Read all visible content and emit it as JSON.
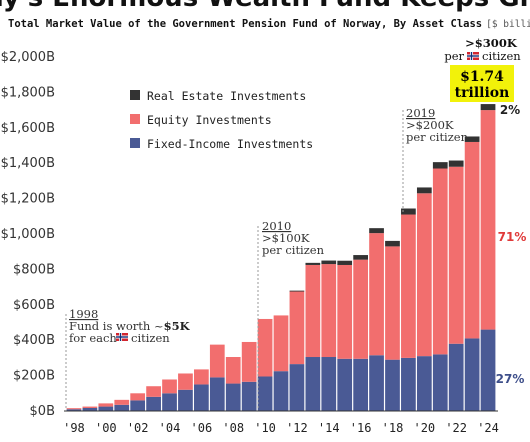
{
  "title": "Norway's Enormous Wealth Fund Keeps Growing",
  "subtitle": "Total Market Value of the Government Pension Fund of Norway, By Asset Class",
  "subtitle_unit": "[$ billions, annual]",
  "colors": {
    "real_estate": "#333333",
    "equity": "#f26e6e",
    "fixed_income": "#4a5a95",
    "highlight": "#f2f20a",
    "annotation_line": "#999999",
    "grid": "#dddddd"
  },
  "chart_data": {
    "type": "bar",
    "stacked": true,
    "categories": [
      "1998",
      "1999",
      "2000",
      "2001",
      "2002",
      "2003",
      "2004",
      "2005",
      "2006",
      "2007",
      "2008",
      "2009",
      "2010",
      "2011",
      "2012",
      "2013",
      "2014",
      "2015",
      "2016",
      "2017",
      "2018",
      "2019",
      "2020",
      "2021",
      "2022",
      "2023",
      "2024"
    ],
    "x_tick_labels": [
      "'98",
      "'00",
      "'02",
      "'04",
      "'06",
      "'08",
      "'10",
      "'12",
      "'14",
      "'16",
      "'18",
      "'20",
      "'22",
      "'24"
    ],
    "y_tick_labels": [
      "$0B",
      "$200B",
      "$400B",
      "$600B",
      "$800B",
      "$1,000B",
      "$1,200B",
      "$1,400B",
      "$1,600B",
      "$1,800B",
      "$2,000B"
    ],
    "ylim": [
      0,
      2000
    ],
    "series": [
      {
        "name": "Fixed-Income Investments",
        "values": [
          10,
          17,
          25,
          35,
          60,
          80,
          100,
          120,
          150,
          190,
          155,
          165,
          195,
          225,
          265,
          305,
          305,
          295,
          295,
          315,
          290,
          300,
          310,
          320,
          380,
          410,
          460
        ]
      },
      {
        "name": "Equity Investments",
        "values": [
          6,
          8,
          18,
          28,
          40,
          60,
          78,
          92,
          85,
          185,
          150,
          225,
          325,
          315,
          410,
          520,
          525,
          530,
          560,
          690,
          640,
          810,
          920,
          1050,
          1000,
          1110,
          1240
        ]
      },
      {
        "name": "Real Estate Investments",
        "values": [
          0,
          0,
          0,
          0,
          0,
          0,
          0,
          0,
          0,
          0,
          0,
          0,
          0,
          0,
          5,
          12,
          20,
          24,
          26,
          28,
          31,
          34,
          33,
          36,
          35,
          31,
          34
        ]
      }
    ],
    "legend": [
      "Real Estate Investments",
      "Equity Investments",
      "Fixed-Income Investments"
    ],
    "legend_position": "top-left",
    "grid": false,
    "annotations": {
      "a1998": {
        "year_label": "1998",
        "line1": "Fund is worth ~$5K",
        "line1_prefix": "Fund is worth ~",
        "line1_value": "$5K",
        "line2_prefix": "for each",
        "line2_suffix": "citizen"
      },
      "a2010": {
        "year_label": "2010",
        "line1": ">$100K",
        "line2": "per citizen"
      },
      "a2019": {
        "year_label": "2019",
        "line1": ">$200K",
        "line2": "per citizen"
      },
      "a2024": {
        "line1": ">$300K",
        "line2_prefix": "per",
        "line2_suffix": "citizen",
        "total_line1": "$1.74",
        "total_line2": "trillion"
      },
      "shares": [
        {
          "label": "2%",
          "color": "#222222"
        },
        {
          "label": "71%",
          "color": "#e03a3a"
        },
        {
          "label": "27%",
          "color": "#3e4f8a"
        }
      ]
    }
  }
}
